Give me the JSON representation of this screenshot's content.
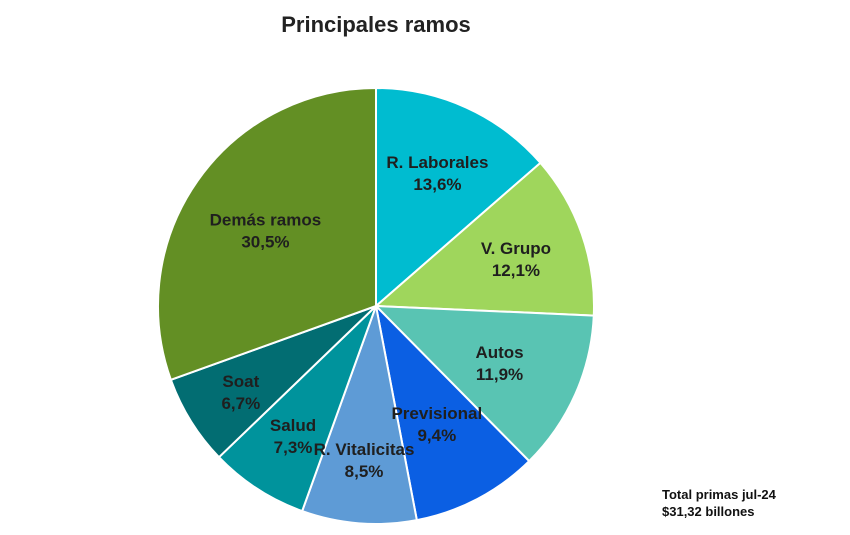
{
  "chart_data": {
    "type": "pie",
    "title": "Principales ramos",
    "slices": [
      {
        "label": "R. Laborales",
        "value_text": "13,6%",
        "value": 13.6,
        "color": "#00BCD0"
      },
      {
        "label": "V. Grupo",
        "value_text": "12,1%",
        "value": 12.1,
        "color": "#9FD65C"
      },
      {
        "label": "Autos",
        "value_text": "11,9%",
        "value": 11.9,
        "color": "#59C4B3"
      },
      {
        "label": "Previsional",
        "value_text": "9,4%",
        "value": 9.4,
        "color": "#0B5FE3"
      },
      {
        "label": "R. Vitalicitas",
        "value_text": "8,5%",
        "value": 8.5,
        "color": "#5E9BD6"
      },
      {
        "label": "Salud",
        "value_text": "7,3%",
        "value": 7.3,
        "color": "#00939C"
      },
      {
        "label": "Soat",
        "value_text": "6,7%",
        "value": 6.7,
        "color": "#026D72"
      },
      {
        "label": "Demás ramos",
        "value_text": "30,5%",
        "value": 30.5,
        "color": "#638F24"
      }
    ],
    "start_angle": "12 o'clock",
    "direction": "clockwise",
    "legend": "none"
  },
  "footnote": {
    "line1": "Total primas jul-24",
    "line2": "$31,32 billones"
  }
}
